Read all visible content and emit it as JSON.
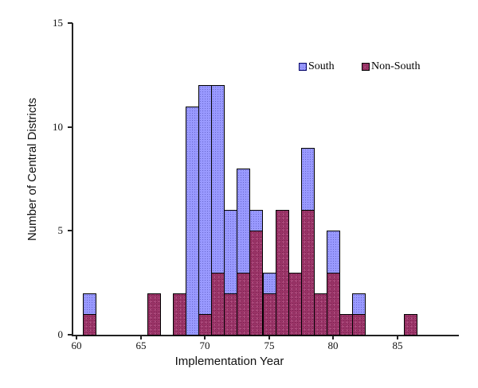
{
  "chart_data": {
    "type": "bar",
    "stacked": true,
    "xlabel": "Implementation Year",
    "ylabel": "Number of Central Districts",
    "ylim": [
      0,
      15
    ],
    "xlim": [
      59.5,
      87
    ],
    "grid": false,
    "legend_position": "top-right",
    "y_ticks": [
      0,
      5,
      10,
      15
    ],
    "y_tick_labels": [
      "0",
      "5",
      "10",
      "15"
    ],
    "x_ticks": [
      60,
      65,
      70,
      75,
      80,
      85
    ],
    "x_tick_labels": [
      "60",
      "65",
      "70",
      "75",
      "80",
      "85"
    ],
    "categories": [
      61,
      66,
      68,
      69,
      70,
      71,
      72,
      73,
      74,
      75,
      76,
      77,
      78,
      79,
      80,
      81,
      82,
      86
    ],
    "series": [
      {
        "name": "South",
        "color": "#9999ff",
        "stack_position": "top",
        "values": [
          1,
          0,
          0,
          11,
          11,
          9,
          4,
          5,
          1,
          1,
          0,
          0,
          3,
          0,
          2,
          0,
          1,
          0
        ]
      },
      {
        "name": "Non-South",
        "color": "#993366",
        "stack_position": "bottom",
        "values": [
          1,
          2,
          2,
          0,
          1,
          3,
          2,
          3,
          5,
          2,
          6,
          3,
          6,
          2,
          3,
          1,
          1,
          1
        ]
      }
    ],
    "totals_by_category": [
      2,
      2,
      2,
      11,
      12,
      12,
      6,
      8,
      6,
      3,
      6,
      3,
      9,
      2,
      5,
      1,
      2,
      1
    ]
  },
  "legend": {
    "south_label": "South",
    "non_south_label": "Non-South"
  }
}
